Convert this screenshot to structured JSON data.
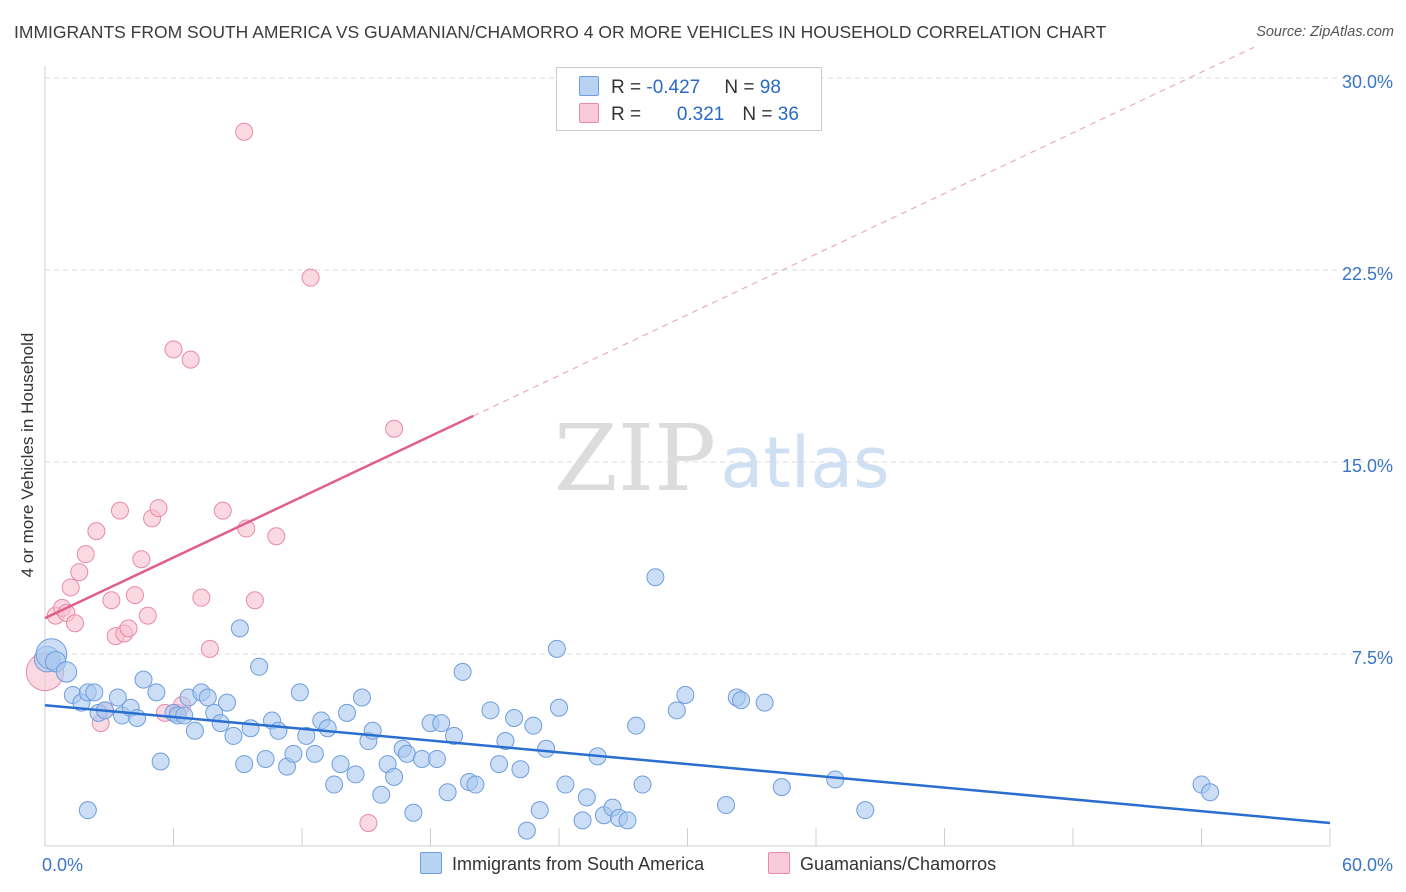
{
  "title": "IMMIGRANTS FROM SOUTH AMERICA VS GUAMANIAN/CHAMORRO 4 OR MORE VEHICLES IN HOUSEHOLD CORRELATION CHART",
  "source": "Source: ZipAtlas.com",
  "watermark": {
    "zip": "ZIP",
    "atlas": "atlas"
  },
  "colors": {
    "blue_fill": "#a9c8f0",
    "blue_stroke": "#6e9edc",
    "blue_line": "#2a6ed0",
    "pink_fill": "#f7bfd1",
    "pink_stroke": "#e98aa8",
    "pink_line": "#e0608a",
    "tick_label": "#3a76c4"
  },
  "legend": {
    "rows": [
      {
        "r_label": "R = ",
        "r_value": "-0.427",
        "n_label": "N = ",
        "n_value": "98"
      },
      {
        "r_label": "R = ",
        "r_value": "0.321",
        "n_label": "N = ",
        "n_value": "36"
      }
    ]
  },
  "chart_data": {
    "type": "scatter",
    "title": "IMMIGRANTS FROM SOUTH AMERICA VS GUAMANIAN/CHAMORRO 4 OR MORE VEHICLES IN HOUSEHOLD CORRELATION CHART",
    "xlabel": "",
    "ylabel": "4 or more Vehicles in Household",
    "xlim": [
      0,
      60
    ],
    "ylim": [
      0,
      30
    ],
    "x_tick_labels": [
      {
        "value": 0,
        "label": "0.0%"
      },
      {
        "value": 60,
        "label": "60.0%"
      }
    ],
    "y_tick_labels": [
      {
        "value": 7.5,
        "label": "7.5%"
      },
      {
        "value": 15,
        "label": "15.0%"
      },
      {
        "value": 22.5,
        "label": "22.5%"
      },
      {
        "value": 30,
        "label": "30.0%"
      }
    ],
    "grid": true,
    "series": [
      {
        "name": "Immigrants from South America",
        "r": -0.427,
        "n": 98,
        "trend": {
          "x0": 0,
          "y0": 5.5,
          "x1": 60,
          "y1": 0.9
        },
        "points": [
          [
            0.1,
            7.3,
            1.5
          ],
          [
            0.3,
            7.5,
            1.8
          ],
          [
            0.5,
            7.2,
            1.2
          ],
          [
            1.0,
            6.8,
            1.2
          ],
          [
            1.3,
            5.9,
            1
          ],
          [
            1.7,
            5.6,
            1
          ],
          [
            2.0,
            6.0,
            1
          ],
          [
            2.3,
            6.0,
            1
          ],
          [
            2.5,
            5.2,
            1
          ],
          [
            2.8,
            5.3,
            1
          ],
          [
            3.4,
            5.8,
            1
          ],
          [
            3.6,
            5.1,
            1
          ],
          [
            4.0,
            5.4,
            1
          ],
          [
            4.3,
            5.0,
            1
          ],
          [
            4.6,
            6.5,
            1
          ],
          [
            5.2,
            6.0,
            1
          ],
          [
            5.4,
            3.3,
            1
          ],
          [
            6.0,
            5.2,
            1
          ],
          [
            6.2,
            5.1,
            1
          ],
          [
            6.5,
            5.1,
            1
          ],
          [
            6.7,
            5.8,
            1
          ],
          [
            7.0,
            4.5,
            1
          ],
          [
            7.3,
            6.0,
            1
          ],
          [
            7.6,
            5.8,
            1
          ],
          [
            7.9,
            5.2,
            1
          ],
          [
            8.2,
            4.8,
            1
          ],
          [
            8.5,
            5.6,
            1
          ],
          [
            8.8,
            4.3,
            1
          ],
          [
            9.1,
            8.5,
            1
          ],
          [
            9.3,
            3.2,
            1
          ],
          [
            9.6,
            4.6,
            1
          ],
          [
            10.0,
            7.0,
            1
          ],
          [
            10.3,
            3.4,
            1
          ],
          [
            10.6,
            4.9,
            1
          ],
          [
            10.9,
            4.5,
            1
          ],
          [
            11.3,
            3.1,
            1
          ],
          [
            11.6,
            3.6,
            1
          ],
          [
            11.9,
            6.0,
            1
          ],
          [
            12.2,
            4.3,
            1
          ],
          [
            12.6,
            3.6,
            1
          ],
          [
            12.9,
            4.9,
            1
          ],
          [
            13.2,
            4.6,
            1
          ],
          [
            13.5,
            2.4,
            1
          ],
          [
            13.8,
            3.2,
            1
          ],
          [
            14.1,
            5.2,
            1
          ],
          [
            14.5,
            2.8,
            1
          ],
          [
            14.8,
            5.8,
            1
          ],
          [
            15.1,
            4.1,
            1
          ],
          [
            15.3,
            4.5,
            1
          ],
          [
            15.7,
            2.0,
            1
          ],
          [
            16.0,
            3.2,
            1
          ],
          [
            16.3,
            2.7,
            1
          ],
          [
            16.7,
            3.8,
            1
          ],
          [
            16.9,
            3.6,
            1
          ],
          [
            17.2,
            1.3,
            1
          ],
          [
            17.6,
            3.4,
            1
          ],
          [
            18.0,
            4.8,
            1
          ],
          [
            18.3,
            3.4,
            1
          ],
          [
            18.5,
            4.8,
            1
          ],
          [
            18.8,
            2.1,
            1
          ],
          [
            19.1,
            4.3,
            1
          ],
          [
            19.5,
            6.8,
            1
          ],
          [
            19.8,
            2.5,
            1
          ],
          [
            20.1,
            2.4,
            1
          ],
          [
            20.8,
            5.3,
            1
          ],
          [
            21.2,
            3.2,
            1
          ],
          [
            21.5,
            4.1,
            1
          ],
          [
            21.9,
            5.0,
            1
          ],
          [
            22.2,
            3.0,
            1
          ],
          [
            22.5,
            0.6,
            1
          ],
          [
            22.8,
            4.7,
            1
          ],
          [
            23.1,
            1.4,
            1
          ],
          [
            23.4,
            3.8,
            1
          ],
          [
            23.9,
            7.7,
            1
          ],
          [
            24.0,
            5.4,
            1
          ],
          [
            24.3,
            2.4,
            1
          ],
          [
            25.1,
            1.0,
            1
          ],
          [
            25.3,
            1.9,
            1
          ],
          [
            25.8,
            3.5,
            1
          ],
          [
            26.1,
            1.2,
            1
          ],
          [
            26.5,
            1.5,
            1
          ],
          [
            26.8,
            1.1,
            1
          ],
          [
            27.2,
            1.0,
            1
          ],
          [
            27.6,
            4.7,
            1
          ],
          [
            27.9,
            2.4,
            1
          ],
          [
            28.5,
            10.5,
            1
          ],
          [
            29.5,
            5.3,
            1
          ],
          [
            29.9,
            5.9,
            1
          ],
          [
            31.8,
            1.6,
            1
          ],
          [
            32.3,
            5.8,
            1
          ],
          [
            32.5,
            5.7,
            1
          ],
          [
            33.6,
            5.6,
            1
          ],
          [
            34.4,
            2.3,
            1
          ],
          [
            36.9,
            2.6,
            1
          ],
          [
            38.3,
            1.4,
            1
          ],
          [
            54.0,
            2.4,
            1
          ],
          [
            54.4,
            2.1,
            1
          ],
          [
            2.0,
            1.4,
            1
          ]
        ]
      },
      {
        "name": "Guamanians/Chamorros",
        "r": 0.321,
        "n": 36,
        "trend": {
          "x0": 0,
          "y0": 8.9,
          "x1": 20,
          "y1": 16.8
        },
        "trend_dashed": {
          "x0": 20,
          "y0": 16.8,
          "x1": 60,
          "y1": 32.6
        },
        "points": [
          [
            0.0,
            6.8,
            2.2
          ],
          [
            0.5,
            9.0,
            1
          ],
          [
            0.8,
            9.3,
            1
          ],
          [
            1.0,
            9.1,
            1
          ],
          [
            1.2,
            10.1,
            1
          ],
          [
            1.4,
            8.7,
            1
          ],
          [
            1.6,
            10.7,
            1
          ],
          [
            1.9,
            11.4,
            1
          ],
          [
            2.4,
            12.3,
            1
          ],
          [
            2.6,
            4.8,
            1
          ],
          [
            2.8,
            5.3,
            1
          ],
          [
            3.1,
            9.6,
            1
          ],
          [
            3.3,
            8.2,
            1
          ],
          [
            3.5,
            13.1,
            1
          ],
          [
            3.7,
            8.3,
            1
          ],
          [
            3.9,
            8.5,
            1
          ],
          [
            4.2,
            9.8,
            1
          ],
          [
            4.5,
            11.2,
            1
          ],
          [
            4.8,
            9.0,
            1
          ],
          [
            5.0,
            12.8,
            1
          ],
          [
            5.3,
            13.2,
            1
          ],
          [
            5.6,
            5.2,
            1
          ],
          [
            6.2,
            5.2,
            1
          ],
          [
            6.0,
            19.4,
            1
          ],
          [
            6.8,
            19.0,
            1
          ],
          [
            7.3,
            9.7,
            1
          ],
          [
            7.7,
            7.7,
            1
          ],
          [
            8.3,
            13.1,
            1
          ],
          [
            9.3,
            27.9,
            1
          ],
          [
            9.4,
            12.4,
            1
          ],
          [
            9.8,
            9.6,
            1
          ],
          [
            10.8,
            12.1,
            1
          ],
          [
            12.4,
            22.2,
            1
          ],
          [
            15.1,
            0.9,
            1
          ],
          [
            16.3,
            16.3,
            1
          ],
          [
            6.4,
            5.5,
            1
          ]
        ]
      }
    ]
  }
}
